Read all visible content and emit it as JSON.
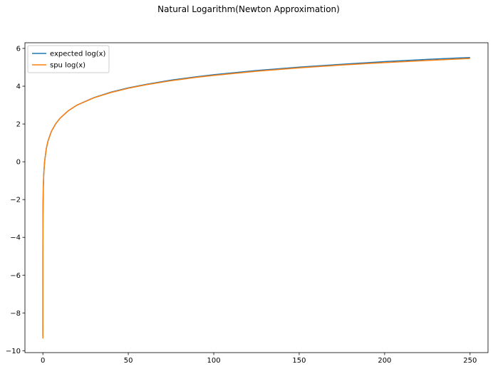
{
  "chart_data": {
    "type": "line",
    "title": "Natural Logarithm(Newton Approximation)",
    "xlabel": "",
    "ylabel": "",
    "xlim": [
      -10.5,
      260.5
    ],
    "ylim": [
      -10.1,
      6.3
    ],
    "x_ticks": [
      0,
      50,
      100,
      150,
      200,
      250
    ],
    "y_ticks": [
      -10,
      -8,
      -6,
      -4,
      -2,
      0,
      2,
      4,
      6
    ],
    "x_tick_labels": [
      "0",
      "50",
      "100",
      "150",
      "200",
      "250"
    ],
    "y_tick_labels": [
      "−10",
      "−8",
      "−6",
      "−4",
      "−2",
      "0",
      "2",
      "4",
      "6"
    ],
    "grid": false,
    "legend_position": "upper-left",
    "series": [
      {
        "name": "expected log(x)",
        "color": "#1f77b4",
        "x": [
          0.0001,
          0.001,
          0.01,
          0.05,
          0.1,
          0.25,
          0.5,
          1,
          2,
          3,
          5,
          7.5,
          10,
          15,
          20,
          30,
          40,
          50,
          60,
          75,
          90,
          100,
          125,
          150,
          175,
          200,
          225,
          250
        ],
        "y": [
          -9.21,
          -6.91,
          -4.61,
          -3.0,
          -2.3,
          -1.39,
          -0.69,
          0.0,
          0.69,
          1.1,
          1.61,
          2.01,
          2.3,
          2.71,
          3.0,
          3.4,
          3.69,
          3.91,
          4.09,
          4.32,
          4.5,
          4.61,
          4.83,
          5.01,
          5.16,
          5.3,
          5.42,
          5.52
        ]
      },
      {
        "name": "spu log(x)",
        "color": "#ff7f0e",
        "x": [
          0.0001,
          0.001,
          0.01,
          0.05,
          0.1,
          0.25,
          0.5,
          1,
          2,
          3,
          5,
          7.5,
          10,
          15,
          20,
          30,
          40,
          50,
          60,
          75,
          90,
          100,
          125,
          150,
          175,
          200,
          225,
          250
        ],
        "y": [
          -9.35,
          -6.91,
          -4.61,
          -3.0,
          -2.3,
          -1.39,
          -0.69,
          0.0,
          0.69,
          1.1,
          1.61,
          2.01,
          2.3,
          2.71,
          3.0,
          3.39,
          3.67,
          3.89,
          4.07,
          4.29,
          4.47,
          4.57,
          4.79,
          4.97,
          5.12,
          5.25,
          5.36,
          5.47
        ]
      }
    ]
  }
}
